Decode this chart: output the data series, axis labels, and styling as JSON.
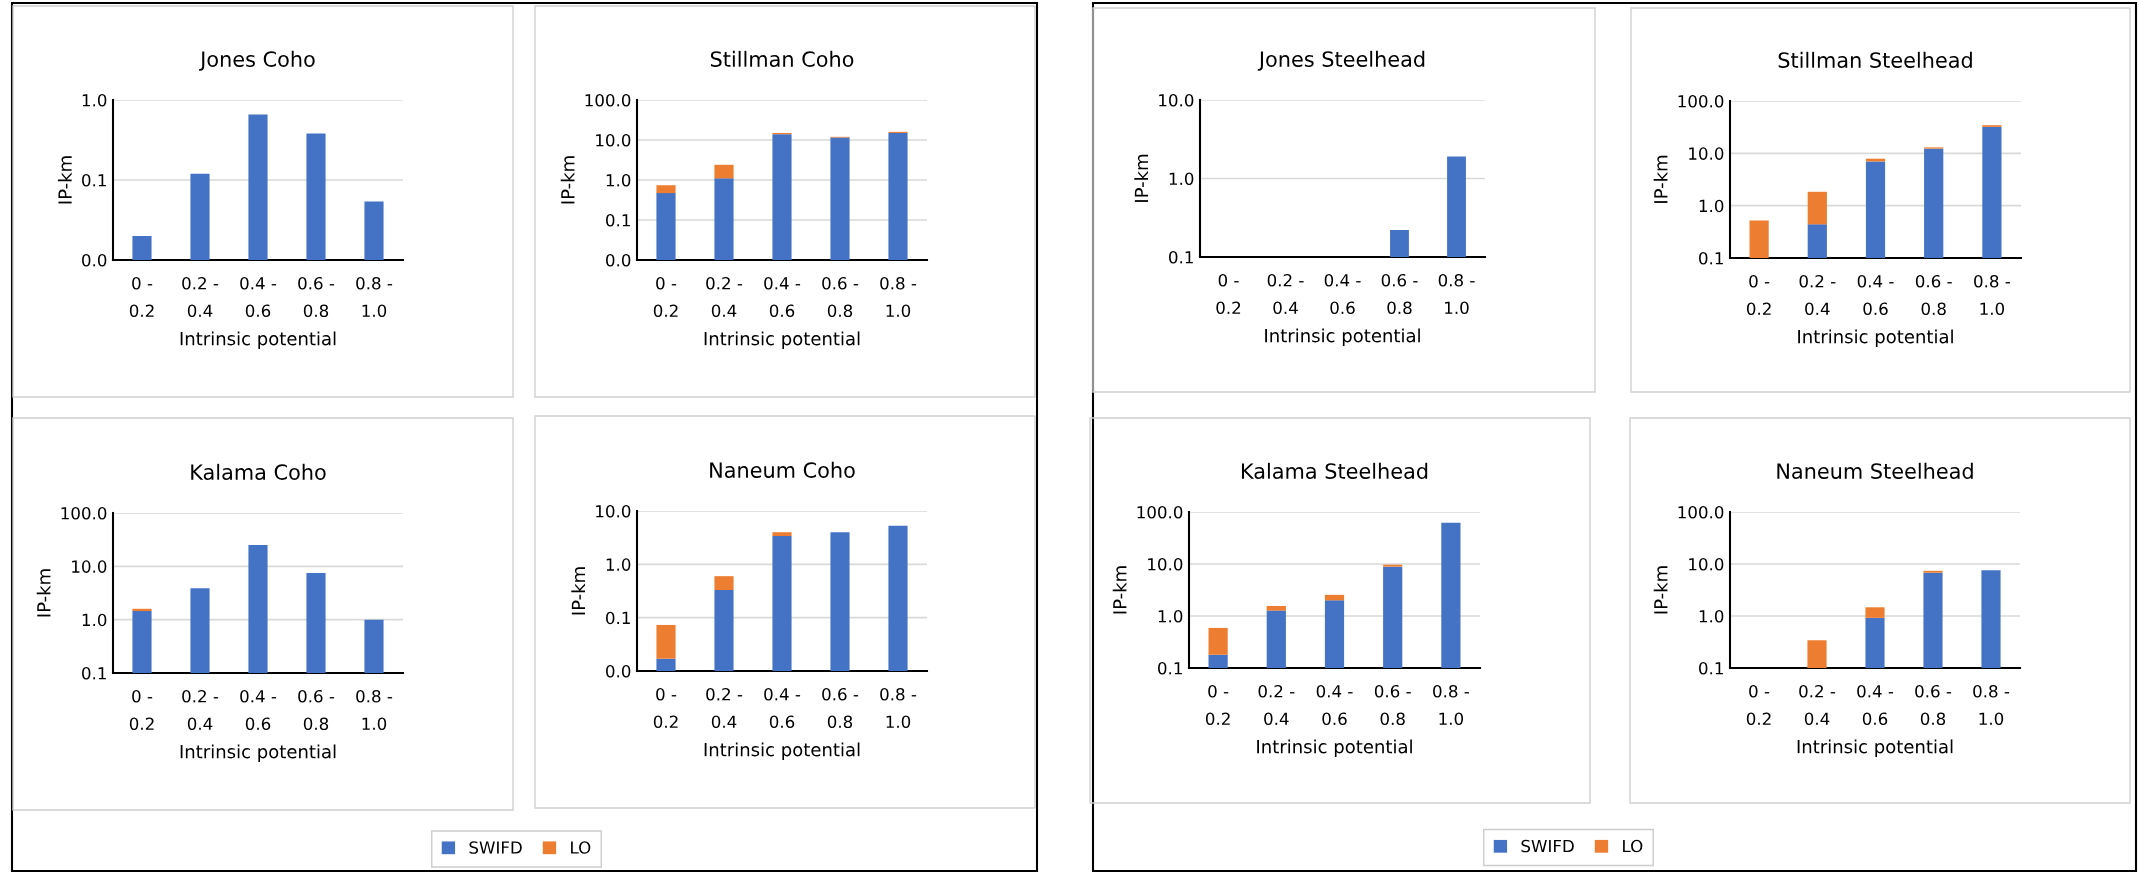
{
  "chart_data": [
    {
      "type": "bar",
      "title": "Jones Coho",
      "xlabel": "Intrinsic potential",
      "ylabel": "IP-km",
      "stacked": true,
      "log": "y",
      "grid": "y",
      "categories": [
        "0 -\n0.2",
        "0.2 -\n0.4",
        "0.4 -\n0.6",
        "0.6 -\n0.8",
        "0.8 -\n1.0"
      ],
      "ylim": [
        0.01,
        1
      ],
      "yticks": [
        {
          "value": 0.01,
          "label": "0.0"
        },
        {
          "value": 0.1,
          "label": "0.1"
        },
        {
          "value": 1,
          "label": "1.0"
        }
      ],
      "series": [
        {
          "color": "#4472c4",
          "values": [
            0.02,
            0.12,
            0.66,
            0.38,
            0.054
          ]
        },
        {
          "color": "#ed7d31",
          "values": [
            null,
            null,
            null,
            null,
            null
          ]
        }
      ]
    },
    {
      "type": "bar",
      "title": "Stillman Coho",
      "xlabel": "Intrinsic potential",
      "ylabel": "IP-km",
      "stacked": true,
      "log": "y",
      "grid": "y",
      "categories": [
        "0 -\n0.2",
        "0.2 -\n0.4",
        "0.4 -\n0.6",
        "0.6 -\n0.8",
        "0.8 -\n1.0"
      ],
      "ylim": [
        0.01,
        100
      ],
      "yticks": [
        {
          "value": 0.01,
          "label": "0.0"
        },
        {
          "value": 0.1,
          "label": "0.1"
        },
        {
          "value": 1,
          "label": "1.0"
        },
        {
          "value": 10,
          "label": "10.0"
        },
        {
          "value": 100,
          "label": "100.0"
        }
      ],
      "series": [
        {
          "color": "#4472c4",
          "values": [
            0.47,
            1.1,
            14,
            11.5,
            15
          ]
        },
        {
          "color": "#ed7d31",
          "values": [
            0.27,
            1.3,
            1,
            0.5,
            1
          ]
        }
      ]
    },
    {
      "type": "bar",
      "title": "Kalama Coho",
      "xlabel": "Intrinsic potential",
      "ylabel": "IP-km",
      "stacked": true,
      "log": "y",
      "grid": "y",
      "categories": [
        "0 -\n0.2",
        "0.2 -\n0.4",
        "0.4 -\n0.6",
        "0.6 -\n0.8",
        "0.8 -\n1.0"
      ],
      "ylim": [
        0.1,
        100
      ],
      "yticks": [
        {
          "value": 0.1,
          "label": "0.1"
        },
        {
          "value": 1,
          "label": "1.0"
        },
        {
          "value": 10,
          "label": "10.0"
        },
        {
          "value": 100,
          "label": "100.0"
        }
      ],
      "series": [
        {
          "color": "#4472c4",
          "values": [
            1.45,
            3.9,
            25,
            7.5,
            1.0
          ]
        },
        {
          "color": "#ed7d31",
          "values": [
            0.15,
            null,
            null,
            null,
            null
          ]
        }
      ]
    },
    {
      "type": "bar",
      "title": "Naneum Coho",
      "xlabel": "Intrinsic potential",
      "ylabel": "IP-km",
      "stacked": true,
      "log": "y",
      "grid": "y",
      "legend": "bottom",
      "categories": [
        "0 -\n0.2",
        "0.2 -\n0.4",
        "0.4 -\n0.6",
        "0.6 -\n0.8",
        "0.8 -\n1.0"
      ],
      "ylim": [
        0.01,
        10
      ],
      "yticks": [
        {
          "value": 0.01,
          "label": "0.0"
        },
        {
          "value": 0.1,
          "label": "0.1"
        },
        {
          "value": 1,
          "label": "1.0"
        },
        {
          "value": 10,
          "label": "10.0"
        }
      ],
      "series": [
        {
          "name": "SWIFD",
          "color": "#4472c4",
          "values": [
            0.017,
            0.33,
            3.4,
            4.0,
            5.3
          ]
        },
        {
          "name": "LO",
          "color": "#ed7d31",
          "values": [
            0.056,
            0.27,
            0.6,
            null,
            null
          ]
        }
      ]
    },
    {
      "type": "bar",
      "title": "Jones Steelhead",
      "xlabel": "Intrinsic potential",
      "ylabel": "IP-km",
      "stacked": true,
      "log": "y",
      "grid": "y",
      "categories": [
        "0 -\n0.2",
        "0.2 -\n0.4",
        "0.4 -\n0.6",
        "0.6 -\n0.8",
        "0.8 -\n1.0"
      ],
      "ylim": [
        0.1,
        10
      ],
      "yticks": [
        {
          "value": 0.1,
          "label": "0.1"
        },
        {
          "value": 1,
          "label": "1.0"
        },
        {
          "value": 10,
          "label": "10.0"
        }
      ],
      "series": [
        {
          "color": "#4472c4",
          "values": [
            null,
            null,
            null,
            0.22,
            1.9
          ]
        },
        {
          "color": "#ed7d31",
          "values": [
            null,
            null,
            null,
            null,
            null
          ]
        }
      ]
    },
    {
      "type": "bar",
      "title": "Stillman Steelhead",
      "xlabel": "Intrinsic potential",
      "ylabel": "IP-km",
      "stacked": true,
      "log": "y",
      "grid": "y",
      "categories": [
        "0 -\n0.2",
        "0.2 -\n0.4",
        "0.4 -\n0.6",
        "0.6 -\n0.8",
        "0.8 -\n1.0"
      ],
      "ylim": [
        0.1,
        100
      ],
      "yticks": [
        {
          "value": 0.1,
          "label": "0.1"
        },
        {
          "value": 1,
          "label": "1.0"
        },
        {
          "value": 10,
          "label": "10.0"
        },
        {
          "value": 100,
          "label": "100.0"
        }
      ],
      "series": [
        {
          "color": "#4472c4",
          "values": [
            null,
            0.44,
            7.0,
            12.3,
            32
          ]
        },
        {
          "color": "#ed7d31",
          "values": [
            0.52,
            1.4,
            0.9,
            0.7,
            2.5
          ]
        }
      ]
    },
    {
      "type": "bar",
      "title": "Kalama Steelhead",
      "xlabel": "Intrinsic potential",
      "ylabel": "IP-km",
      "stacked": true,
      "log": "y",
      "grid": "y",
      "legend": "bottom",
      "categories": [
        "0 -\n0.2",
        "0.2 -\n0.4",
        "0.4 -\n0.6",
        "0.6 -\n0.8",
        "0.8 -\n1.0"
      ],
      "ylim": [
        0.1,
        100
      ],
      "yticks": [
        {
          "value": 0.1,
          "label": "0.1"
        },
        {
          "value": 1,
          "label": "1.0"
        },
        {
          "value": 10,
          "label": "10.0"
        },
        {
          "value": 100,
          "label": "100.0"
        }
      ],
      "series": [
        {
          "name": "SWIFD",
          "color": "#4472c4",
          "values": [
            0.18,
            1.27,
            2.0,
            8.9,
            62
          ]
        },
        {
          "name": "LO",
          "color": "#ed7d31",
          "values": [
            0.41,
            0.29,
            0.55,
            0.8,
            null
          ]
        }
      ]
    },
    {
      "type": "bar",
      "title": "Naneum Steelhead",
      "xlabel": "Intrinsic potential",
      "ylabel": "IP-km",
      "stacked": true,
      "log": "y",
      "grid": "y",
      "categories": [
        "0 -\n0.2",
        "0.2 -\n0.4",
        "0.4 -\n0.6",
        "0.6 -\n0.8",
        "0.8 -\n1.0"
      ],
      "ylim": [
        0.1,
        100
      ],
      "yticks": [
        {
          "value": 0.1,
          "label": "0.1"
        },
        {
          "value": 1,
          "label": "1.0"
        },
        {
          "value": 10,
          "label": "10.0"
        },
        {
          "value": 100,
          "label": "100.0"
        }
      ],
      "series": [
        {
          "color": "#4472c4",
          "values": [
            null,
            null,
            0.92,
            6.8,
            7.6
          ]
        },
        {
          "color": "#ed7d31",
          "values": [
            null,
            0.34,
            0.55,
            0.6,
            null
          ]
        }
      ]
    }
  ]
}
